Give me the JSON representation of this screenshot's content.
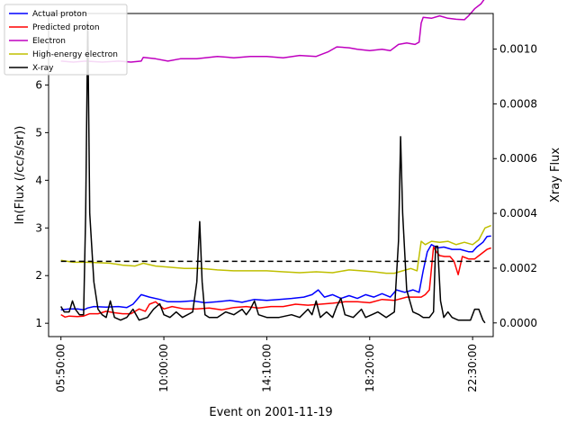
{
  "chart_data": {
    "type": "line",
    "xlabel": "Event on 2001-11-19",
    "ylabel_left": "ln(Flux (/cc/s/sr))",
    "ylabel_right": "Xray Flux",
    "x_ticks": [
      "05:50:00",
      "10:00:00",
      "14:10:00",
      "18:20:00",
      "22:30:00"
    ],
    "x_tick_positions": [
      0,
      250,
      500,
      750,
      1000
    ],
    "xlim": [
      -30,
      1050
    ],
    "ylim_left": [
      0.72,
      7.5
    ],
    "yticks_left": [
      1,
      2,
      3,
      4,
      5,
      6
    ],
    "ylim_right": [
      -5e-05,
      0.00113
    ],
    "yticks_right": [
      0.0,
      0.0002,
      0.0004,
      0.0006,
      0.0008,
      0.001
    ],
    "yticks_right_labels": [
      "0.0000",
      "0.0002",
      "0.0004",
      "0.0006",
      "0.0008",
      "0.0010"
    ],
    "legend_position": "top-left",
    "threshold_line": {
      "y": 2.3,
      "style": "dashed",
      "color": "#000000"
    },
    "series": [
      {
        "name": "Actual proton",
        "color": "#0000ff",
        "axis": "left",
        "points": [
          [
            0,
            1.28
          ],
          [
            20,
            1.3
          ],
          [
            40,
            1.3
          ],
          [
            55,
            1.28
          ],
          [
            65,
            1.32
          ],
          [
            80,
            1.35
          ],
          [
            110,
            1.34
          ],
          [
            140,
            1.35
          ],
          [
            160,
            1.33
          ],
          [
            175,
            1.4
          ],
          [
            195,
            1.6
          ],
          [
            215,
            1.55
          ],
          [
            240,
            1.5
          ],
          [
            260,
            1.45
          ],
          [
            290,
            1.45
          ],
          [
            320,
            1.47
          ],
          [
            350,
            1.43
          ],
          [
            380,
            1.45
          ],
          [
            410,
            1.48
          ],
          [
            440,
            1.44
          ],
          [
            470,
            1.5
          ],
          [
            500,
            1.48
          ],
          [
            530,
            1.5
          ],
          [
            560,
            1.52
          ],
          [
            590,
            1.55
          ],
          [
            610,
            1.6
          ],
          [
            625,
            1.7
          ],
          [
            640,
            1.55
          ],
          [
            660,
            1.6
          ],
          [
            680,
            1.52
          ],
          [
            700,
            1.58
          ],
          [
            720,
            1.52
          ],
          [
            740,
            1.6
          ],
          [
            760,
            1.55
          ],
          [
            780,
            1.62
          ],
          [
            800,
            1.55
          ],
          [
            815,
            1.7
          ],
          [
            835,
            1.65
          ],
          [
            855,
            1.7
          ],
          [
            870,
            1.65
          ],
          [
            880,
            2.1
          ],
          [
            890,
            2.5
          ],
          [
            900,
            2.65
          ],
          [
            915,
            2.58
          ],
          [
            930,
            2.6
          ],
          [
            950,
            2.55
          ],
          [
            970,
            2.55
          ],
          [
            990,
            2.5
          ],
          [
            1000,
            2.5
          ],
          [
            1010,
            2.6
          ],
          [
            1025,
            2.7
          ],
          [
            1035,
            2.82
          ],
          [
            1045,
            2.83
          ]
        ]
      },
      {
        "name": "Predicted proton",
        "color": "#ff0000",
        "axis": "left",
        "points": [
          [
            0,
            1.18
          ],
          [
            10,
            1.13
          ],
          [
            20,
            1.15
          ],
          [
            40,
            1.14
          ],
          [
            55,
            1.15
          ],
          [
            70,
            1.2
          ],
          [
            90,
            1.2
          ],
          [
            110,
            1.25
          ],
          [
            130,
            1.22
          ],
          [
            150,
            1.2
          ],
          [
            170,
            1.2
          ],
          [
            190,
            1.3
          ],
          [
            205,
            1.25
          ],
          [
            215,
            1.4
          ],
          [
            230,
            1.45
          ],
          [
            250,
            1.3
          ],
          [
            270,
            1.35
          ],
          [
            300,
            1.3
          ],
          [
            330,
            1.3
          ],
          [
            360,
            1.32
          ],
          [
            390,
            1.28
          ],
          [
            420,
            1.33
          ],
          [
            450,
            1.35
          ],
          [
            480,
            1.32
          ],
          [
            510,
            1.35
          ],
          [
            540,
            1.35
          ],
          [
            570,
            1.4
          ],
          [
            600,
            1.38
          ],
          [
            630,
            1.4
          ],
          [
            660,
            1.42
          ],
          [
            690,
            1.45
          ],
          [
            720,
            1.45
          ],
          [
            750,
            1.43
          ],
          [
            780,
            1.5
          ],
          [
            810,
            1.48
          ],
          [
            840,
            1.55
          ],
          [
            860,
            1.55
          ],
          [
            875,
            1.55
          ],
          [
            885,
            1.6
          ],
          [
            895,
            1.7
          ],
          [
            905,
            2.6
          ],
          [
            912,
            2.5
          ],
          [
            920,
            2.42
          ],
          [
            932,
            2.4
          ],
          [
            945,
            2.4
          ],
          [
            955,
            2.3
          ],
          [
            965,
            2.02
          ],
          [
            975,
            2.4
          ],
          [
            990,
            2.35
          ],
          [
            1005,
            2.35
          ],
          [
            1020,
            2.45
          ],
          [
            1035,
            2.55
          ],
          [
            1045,
            2.58
          ]
        ]
      },
      {
        "name": "Electron",
        "color": "#bf00bf",
        "axis": "left",
        "points": [
          [
            0,
            6.5
          ],
          [
            30,
            6.48
          ],
          [
            60,
            6.5
          ],
          [
            100,
            6.48
          ],
          [
            140,
            6.5
          ],
          [
            170,
            6.48
          ],
          [
            195,
            6.5
          ],
          [
            200,
            6.58
          ],
          [
            230,
            6.55
          ],
          [
            260,
            6.5
          ],
          [
            290,
            6.55
          ],
          [
            330,
            6.55
          ],
          [
            380,
            6.6
          ],
          [
            420,
            6.57
          ],
          [
            460,
            6.6
          ],
          [
            500,
            6.6
          ],
          [
            540,
            6.57
          ],
          [
            580,
            6.62
          ],
          [
            620,
            6.6
          ],
          [
            650,
            6.7
          ],
          [
            670,
            6.8
          ],
          [
            700,
            6.78
          ],
          [
            720,
            6.75
          ],
          [
            750,
            6.72
          ],
          [
            780,
            6.75
          ],
          [
            800,
            6.72
          ],
          [
            820,
            6.85
          ],
          [
            840,
            6.88
          ],
          [
            860,
            6.85
          ],
          [
            870,
            6.9
          ],
          [
            875,
            7.3
          ],
          [
            880,
            7.42
          ],
          [
            900,
            7.4
          ],
          [
            920,
            7.45
          ],
          [
            940,
            7.4
          ],
          [
            960,
            7.38
          ],
          [
            980,
            7.37
          ],
          [
            990,
            7.45
          ],
          [
            1005,
            7.6
          ],
          [
            1020,
            7.7
          ],
          [
            1030,
            7.82
          ],
          [
            1045,
            7.85
          ]
        ]
      },
      {
        "name": "High-energy electron",
        "color": "#bfbf00",
        "axis": "left",
        "points": [
          [
            0,
            2.32
          ],
          [
            30,
            2.28
          ],
          [
            60,
            2.28
          ],
          [
            90,
            2.27
          ],
          [
            120,
            2.26
          ],
          [
            150,
            2.22
          ],
          [
            180,
            2.2
          ],
          [
            200,
            2.26
          ],
          [
            230,
            2.2
          ],
          [
            260,
            2.18
          ],
          [
            300,
            2.15
          ],
          [
            340,
            2.15
          ],
          [
            380,
            2.12
          ],
          [
            420,
            2.1
          ],
          [
            460,
            2.1
          ],
          [
            500,
            2.1
          ],
          [
            540,
            2.08
          ],
          [
            580,
            2.06
          ],
          [
            620,
            2.08
          ],
          [
            660,
            2.06
          ],
          [
            700,
            2.12
          ],
          [
            730,
            2.1
          ],
          [
            760,
            2.08
          ],
          [
            790,
            2.05
          ],
          [
            810,
            2.05
          ],
          [
            830,
            2.1
          ],
          [
            850,
            2.15
          ],
          [
            865,
            2.1
          ],
          [
            875,
            2.72
          ],
          [
            885,
            2.65
          ],
          [
            900,
            2.72
          ],
          [
            920,
            2.7
          ],
          [
            940,
            2.72
          ],
          [
            960,
            2.65
          ],
          [
            980,
            2.7
          ],
          [
            1000,
            2.65
          ],
          [
            1015,
            2.75
          ],
          [
            1030,
            3.0
          ],
          [
            1045,
            3.05
          ]
        ]
      },
      {
        "name": "X-ray",
        "color": "#000000",
        "axis": "right",
        "points": [
          [
            0,
            6e-05
          ],
          [
            8,
            4e-05
          ],
          [
            20,
            4e-05
          ],
          [
            28,
            8e-05
          ],
          [
            35,
            5e-05
          ],
          [
            45,
            3e-05
          ],
          [
            55,
            3e-05
          ],
          [
            60,
            0.0004
          ],
          [
            65,
            0.0011
          ],
          [
            70,
            0.0004
          ],
          [
            80,
            0.00015
          ],
          [
            90,
            5e-05
          ],
          [
            100,
            3e-05
          ],
          [
            110,
            2e-05
          ],
          [
            120,
            8e-05
          ],
          [
            130,
            2e-05
          ],
          [
            145,
            1e-05
          ],
          [
            160,
            2e-05
          ],
          [
            175,
            5e-05
          ],
          [
            190,
            1e-05
          ],
          [
            210,
            2e-05
          ],
          [
            225,
            5e-05
          ],
          [
            240,
            7e-05
          ],
          [
            250,
            3e-05
          ],
          [
            265,
            2e-05
          ],
          [
            280,
            4e-05
          ],
          [
            295,
            2e-05
          ],
          [
            320,
            4e-05
          ],
          [
            330,
            0.00015
          ],
          [
            337,
            0.00037
          ],
          [
            343,
            0.00015
          ],
          [
            350,
            3e-05
          ],
          [
            360,
            2e-05
          ],
          [
            380,
            2e-05
          ],
          [
            400,
            4e-05
          ],
          [
            420,
            3e-05
          ],
          [
            440,
            5e-05
          ],
          [
            450,
            3e-05
          ],
          [
            460,
            5e-05
          ],
          [
            470,
            8e-05
          ],
          [
            480,
            3e-05
          ],
          [
            500,
            2e-05
          ],
          [
            530,
            2e-05
          ],
          [
            560,
            3e-05
          ],
          [
            580,
            2e-05
          ],
          [
            600,
            5e-05
          ],
          [
            610,
            3e-05
          ],
          [
            620,
            8e-05
          ],
          [
            630,
            2e-05
          ],
          [
            645,
            4e-05
          ],
          [
            660,
            2e-05
          ],
          [
            670,
            6e-05
          ],
          [
            680,
            9e-05
          ],
          [
            690,
            3e-05
          ],
          [
            710,
            2e-05
          ],
          [
            730,
            5e-05
          ],
          [
            740,
            2e-05
          ],
          [
            755,
            3e-05
          ],
          [
            770,
            4e-05
          ],
          [
            790,
            2e-05
          ],
          [
            810,
            4e-05
          ],
          [
            820,
            0.0003
          ],
          [
            825,
            0.00068
          ],
          [
            830,
            0.0004
          ],
          [
            840,
            0.00012
          ],
          [
            855,
            4e-05
          ],
          [
            870,
            3e-05
          ],
          [
            880,
            2e-05
          ],
          [
            895,
            2e-05
          ],
          [
            905,
            4e-05
          ],
          [
            910,
            0.00028
          ],
          [
            915,
            0.00028
          ],
          [
            922,
            8e-05
          ],
          [
            930,
            2e-05
          ],
          [
            940,
            4e-05
          ],
          [
            950,
            2e-05
          ],
          [
            965,
            1e-05
          ],
          [
            980,
            1e-05
          ],
          [
            995,
            1e-05
          ],
          [
            1005,
            5e-05
          ],
          [
            1015,
            5e-05
          ],
          [
            1025,
            1e-05
          ],
          [
            1030,
            0.0
          ]
        ]
      }
    ]
  }
}
